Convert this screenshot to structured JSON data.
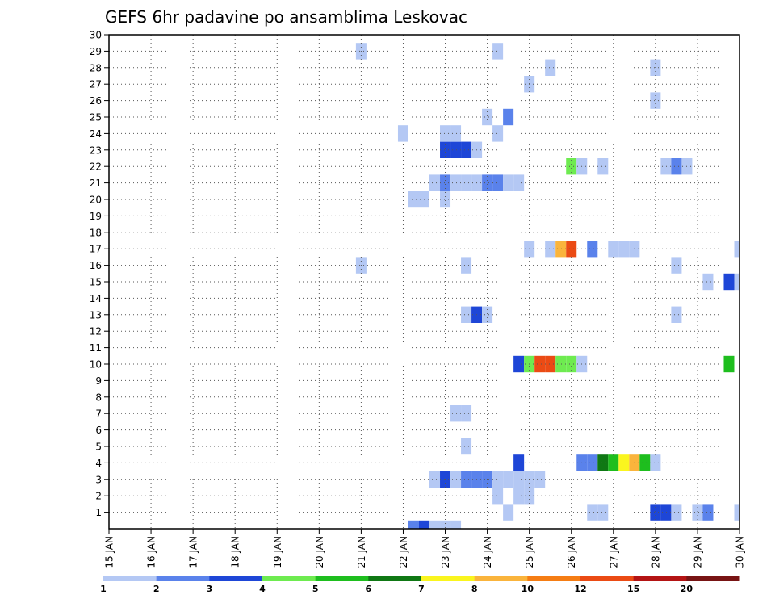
{
  "chart_data": {
    "type": "heatmap",
    "title": "GEFS 6hr padavine po ansamblima Leskovac",
    "xlabel": "",
    "ylabel": "",
    "x_ticks": [
      "15 JAN",
      "16 JAN",
      "17 JAN",
      "18 JAN",
      "19 JAN",
      "20 JAN",
      "21 JAN",
      "22 JAN",
      "23 JAN",
      "24 JAN",
      "25 JAN",
      "26 JAN",
      "27 JAN",
      "28 JAN",
      "29 JAN",
      "30 JAN"
    ],
    "y_ticks": [
      "1",
      "2",
      "3",
      "4",
      "5",
      "6",
      "7",
      "8",
      "9",
      "10",
      "11",
      "12",
      "13",
      "14",
      "15",
      "16",
      "17",
      "18",
      "19",
      "20",
      "21",
      "22",
      "23",
      "24",
      "25",
      "26",
      "27",
      "28",
      "29",
      "30"
    ],
    "x_range_days": [
      15,
      30
    ],
    "y_range": [
      0,
      30
    ],
    "time_step_hours": 6,
    "grid": true,
    "colorbar": {
      "levels": [
        "1",
        "2",
        "3",
        "4",
        "5",
        "6",
        "7",
        "8",
        "10",
        "12",
        "15",
        "20"
      ],
      "colors": [
        "#b4c8f4",
        "#5a82eb",
        "#1e46d7",
        "#6eeb50",
        "#1ebe1e",
        "#0f7814",
        "#faf51e",
        "#fab43c",
        "#f57d14",
        "#eb4b14",
        "#b41414",
        "#781414"
      ]
    },
    "series": [
      {
        "member": 0,
        "cells": [
          [
            22.25,
            2
          ],
          [
            22.5,
            3
          ],
          [
            22.75,
            1
          ],
          [
            23.0,
            1
          ],
          [
            23.25,
            1
          ]
        ]
      },
      {
        "member": 1,
        "cells": [
          [
            24.5,
            1
          ],
          [
            26.5,
            1
          ],
          [
            26.75,
            1
          ],
          [
            28.0,
            3
          ],
          [
            28.25,
            3
          ],
          [
            28.5,
            1
          ],
          [
            29.0,
            1
          ],
          [
            29.25,
            2
          ],
          [
            30.0,
            1
          ]
        ]
      },
      {
        "member": 2,
        "cells": [
          [
            24.25,
            1
          ],
          [
            24.75,
            1
          ],
          [
            25.0,
            1
          ]
        ]
      },
      {
        "member": 3,
        "cells": [
          [
            22.75,
            1
          ],
          [
            23.0,
            3
          ],
          [
            23.25,
            1
          ],
          [
            23.5,
            2
          ],
          [
            23.75,
            2
          ],
          [
            24.0,
            2
          ],
          [
            24.25,
            1
          ],
          [
            24.5,
            1
          ],
          [
            24.75,
            1
          ],
          [
            25.0,
            1
          ],
          [
            25.25,
            1
          ]
        ]
      },
      {
        "member": 4,
        "cells": [
          [
            24.75,
            3
          ],
          [
            26.25,
            2
          ],
          [
            26.5,
            2
          ],
          [
            26.75,
            6
          ],
          [
            27.0,
            5
          ],
          [
            27.25,
            7
          ],
          [
            27.5,
            8
          ],
          [
            27.75,
            5
          ],
          [
            28.0,
            1
          ]
        ]
      },
      {
        "member": 5,
        "cells": [
          [
            23.5,
            1
          ]
        ]
      },
      {
        "member": 7,
        "cells": [
          [
            23.25,
            1
          ],
          [
            23.5,
            1
          ]
        ]
      },
      {
        "member": 10,
        "cells": [
          [
            24.75,
            3
          ],
          [
            25.0,
            4
          ],
          [
            25.25,
            10
          ],
          [
            25.5,
            10
          ],
          [
            25.75,
            4
          ],
          [
            26.0,
            4
          ],
          [
            26.25,
            1
          ],
          [
            29.75,
            5
          ]
        ]
      },
      {
        "member": 13,
        "cells": [
          [
            23.5,
            1
          ],
          [
            23.75,
            3
          ],
          [
            24.0,
            1
          ],
          [
            28.5,
            1
          ]
        ]
      },
      {
        "member": 15,
        "cells": [
          [
            29.25,
            1
          ],
          [
            29.75,
            3
          ],
          [
            30.0,
            1
          ]
        ]
      },
      {
        "member": 16,
        "cells": [
          [
            21.0,
            1
          ],
          [
            23.5,
            1
          ],
          [
            28.5,
            1
          ]
        ]
      },
      {
        "member": 17,
        "cells": [
          [
            25.0,
            1
          ],
          [
            25.5,
            1
          ],
          [
            25.75,
            8
          ],
          [
            26.0,
            10
          ],
          [
            26.5,
            2
          ],
          [
            27.0,
            1
          ],
          [
            27.25,
            1
          ],
          [
            27.5,
            1
          ],
          [
            30.0,
            1
          ]
        ]
      },
      {
        "member": 20,
        "cells": [
          [
            22.25,
            1
          ],
          [
            22.5,
            1
          ],
          [
            23.0,
            1
          ]
        ]
      },
      {
        "member": 21,
        "cells": [
          [
            22.75,
            1
          ],
          [
            23.0,
            2
          ],
          [
            23.25,
            1
          ],
          [
            23.5,
            1
          ],
          [
            23.75,
            1
          ],
          [
            24.0,
            2
          ],
          [
            24.25,
            2
          ],
          [
            24.5,
            1
          ],
          [
            24.75,
            1
          ]
        ]
      },
      {
        "member": 22,
        "cells": [
          [
            26.0,
            4
          ],
          [
            26.25,
            1
          ],
          [
            26.75,
            1
          ],
          [
            28.25,
            1
          ],
          [
            28.5,
            2
          ],
          [
            28.75,
            1
          ]
        ]
      },
      {
        "member": 23,
        "cells": [
          [
            23.0,
            3
          ],
          [
            23.25,
            3
          ],
          [
            23.5,
            3
          ],
          [
            23.75,
            1
          ]
        ]
      },
      {
        "member": 24,
        "cells": [
          [
            22.0,
            1
          ],
          [
            23.0,
            1
          ],
          [
            23.25,
            1
          ],
          [
            24.25,
            1
          ]
        ]
      },
      {
        "member": 25,
        "cells": [
          [
            24.0,
            1
          ],
          [
            24.5,
            2
          ]
        ]
      },
      {
        "member": 26,
        "cells": [
          [
            28.0,
            1
          ]
        ]
      },
      {
        "member": 27,
        "cells": [
          [
            25.0,
            1
          ]
        ]
      },
      {
        "member": 28,
        "cells": [
          [
            25.5,
            1
          ],
          [
            28.0,
            1
          ]
        ]
      },
      {
        "member": 29,
        "cells": [
          [
            21.0,
            1
          ],
          [
            24.25,
            1
          ]
        ]
      }
    ]
  }
}
